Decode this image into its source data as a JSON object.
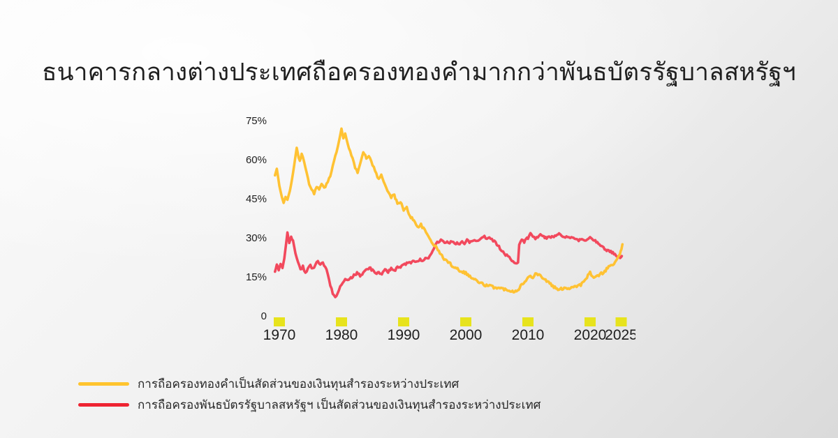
{
  "title": "ธนาคารกลางต่างประเทศถือครองทองคำมากกว่าพันธบัตรรัฐบาลสหรัฐฯ",
  "colors": {
    "background_start": "#fbfbfb",
    "background_mid": "#efefef",
    "background_end": "#dadada",
    "title_text": "#202020",
    "axis_text": "#1e1e1e",
    "tick_marker": "#e7e31d"
  },
  "chart_data": {
    "type": "line",
    "title": "ธนาคารกลางต่างประเทศถือครองทองคำมากกว่าพันธบัตรรัฐบาลสหรัฐฯ",
    "grid": false,
    "legend_position": "bottom-left",
    "x_axis": {
      "range": [
        1969.3,
        2025.3
      ],
      "ticks": [
        {
          "year": 1970,
          "label": "1970"
        },
        {
          "year": 1980,
          "label": "1980"
        },
        {
          "year": 1990,
          "label": "1990"
        },
        {
          "year": 2000,
          "label": "2000"
        },
        {
          "year": 2010,
          "label": "2010"
        },
        {
          "year": 2020,
          "label": "2020"
        },
        {
          "year": 2025,
          "label": "2025"
        }
      ]
    },
    "y_axis": {
      "range": [
        0,
        78
      ],
      "unit": "%",
      "ticks": [
        {
          "value": 0,
          "label": "0"
        },
        {
          "value": 15,
          "label": "15%"
        },
        {
          "value": 30,
          "label": "30%"
        },
        {
          "value": 45,
          "label": "45%"
        },
        {
          "value": 60,
          "label": "60%"
        },
        {
          "value": 75,
          "label": "75%"
        }
      ]
    },
    "series": [
      {
        "name": "gold-share-of-reserves",
        "legend": "การถือครองทองคำเป็นสัดส่วนของเงินทุนสำรองระหว่างประเทศ",
        "color": "#FFC233",
        "legend_color": "#FFC42E",
        "points": [
          [
            1969.3,
            54
          ],
          [
            1969.6,
            56.5
          ],
          [
            1970,
            50
          ],
          [
            1970.4,
            45.5
          ],
          [
            1970.7,
            43.5
          ],
          [
            1971,
            46
          ],
          [
            1971.3,
            44.5
          ],
          [
            1971.7,
            48
          ],
          [
            1972,
            52
          ],
          [
            1972.4,
            58
          ],
          [
            1972.8,
            64.5
          ],
          [
            1973.1,
            61
          ],
          [
            1973.3,
            59.5
          ],
          [
            1973.6,
            62
          ],
          [
            1974,
            59
          ],
          [
            1974.4,
            55
          ],
          [
            1974.8,
            51
          ],
          [
            1975.2,
            48.5
          ],
          [
            1975.6,
            47
          ],
          [
            1976,
            50
          ],
          [
            1976.4,
            48.5
          ],
          [
            1976.8,
            50.5
          ],
          [
            1977.2,
            49
          ],
          [
            1977.6,
            50.5
          ],
          [
            1978,
            52.5
          ],
          [
            1978.4,
            55.5
          ],
          [
            1978.8,
            60
          ],
          [
            1979.2,
            63
          ],
          [
            1979.6,
            67
          ],
          [
            1980,
            72
          ],
          [
            1980.3,
            68
          ],
          [
            1980.6,
            70
          ],
          [
            1981,
            66
          ],
          [
            1981.4,
            63.5
          ],
          [
            1981.8,
            60.5
          ],
          [
            1982.2,
            57
          ],
          [
            1982.6,
            55
          ],
          [
            1983,
            58.5
          ],
          [
            1983.5,
            63
          ],
          [
            1984,
            60.5
          ],
          [
            1984.4,
            61.5
          ],
          [
            1984.8,
            59.5
          ],
          [
            1985.2,
            57
          ],
          [
            1985.6,
            54.5
          ],
          [
            1986,
            52.5
          ],
          [
            1986.4,
            54
          ],
          [
            1986.8,
            51.5
          ],
          [
            1987.2,
            49.5
          ],
          [
            1987.6,
            47.5
          ],
          [
            1988,
            45.5
          ],
          [
            1988.5,
            46.5
          ],
          [
            1989,
            43
          ],
          [
            1989.5,
            44
          ],
          [
            1990,
            40.5
          ],
          [
            1990.5,
            41.5
          ],
          [
            1991,
            38.5
          ],
          [
            1991.5,
            37
          ],
          [
            1992,
            35.5
          ],
          [
            1992.4,
            34
          ],
          [
            1992.8,
            35
          ],
          [
            1993.2,
            33.5
          ],
          [
            1993.6,
            32
          ],
          [
            1994,
            30.5
          ],
          [
            1994.5,
            28.5
          ],
          [
            1995,
            27
          ],
          [
            1995.5,
            25.5
          ],
          [
            1996,
            23.5
          ],
          [
            1996.5,
            22
          ],
          [
            1997,
            21
          ],
          [
            1997.5,
            20
          ],
          [
            1998,
            19
          ],
          [
            1998.5,
            18.5
          ],
          [
            1999,
            17.5
          ],
          [
            1999.5,
            17
          ],
          [
            2000,
            16.5
          ],
          [
            2000.5,
            15.5
          ],
          [
            2001,
            14.5
          ],
          [
            2001.5,
            14
          ],
          [
            2002,
            13
          ],
          [
            2002.5,
            12.5
          ],
          [
            2003,
            12
          ],
          [
            2003.5,
            11.5
          ],
          [
            2004,
            11.5
          ],
          [
            2004.5,
            11
          ],
          [
            2005,
            11
          ],
          [
            2005.5,
            10.5
          ],
          [
            2006,
            10.5
          ],
          [
            2006.5,
            10
          ],
          [
            2007,
            10
          ],
          [
            2007.5,
            9.5
          ],
          [
            2008,
            9.5
          ],
          [
            2008.5,
            10.5
          ],
          [
            2009,
            12
          ],
          [
            2009.5,
            13
          ],
          [
            2010,
            14.5
          ],
          [
            2010.4,
            15.5
          ],
          [
            2010.8,
            15
          ],
          [
            2011.2,
            16.5
          ],
          [
            2011.6,
            16
          ],
          [
            2012,
            15.5
          ],
          [
            2012.5,
            14.5
          ],
          [
            2013,
            13.5
          ],
          [
            2013.5,
            12.5
          ],
          [
            2014,
            11.5
          ],
          [
            2014.5,
            10.5
          ],
          [
            2015,
            10
          ],
          [
            2015.5,
            10.5
          ],
          [
            2016,
            11
          ],
          [
            2016.5,
            10.5
          ],
          [
            2017,
            11
          ],
          [
            2017.5,
            11.5
          ],
          [
            2018,
            11.5
          ],
          [
            2018.5,
            12
          ],
          [
            2019,
            13
          ],
          [
            2019.5,
            15
          ],
          [
            2020,
            16.5
          ],
          [
            2020.4,
            15
          ],
          [
            2020.8,
            14.5
          ],
          [
            2021.2,
            15.5
          ],
          [
            2021.6,
            16
          ],
          [
            2022,
            16.5
          ],
          [
            2022.5,
            17.5
          ],
          [
            2023,
            19
          ],
          [
            2023.5,
            19.5
          ],
          [
            2024,
            20.5
          ],
          [
            2024.4,
            22
          ],
          [
            2024.8,
            23.5
          ],
          [
            2025.05,
            25.5
          ],
          [
            2025.2,
            27.5
          ]
        ]
      },
      {
        "name": "us-treasury-share-of-reserves",
        "legend": "การถือครองพันธบัตรรัฐบาลสหรัฐฯ เป็นสัดส่วนของเงินทุนสำรองระหว่างประเทศ",
        "color": "#F2495D",
        "legend_color": "#EE2432",
        "points": [
          [
            1969.3,
            17
          ],
          [
            1969.6,
            19.5
          ],
          [
            1969.9,
            17.5
          ],
          [
            1970.2,
            20
          ],
          [
            1970.5,
            18.5
          ],
          [
            1970.8,
            22
          ],
          [
            1971.1,
            28
          ],
          [
            1971.3,
            32
          ],
          [
            1971.6,
            28
          ],
          [
            1971.9,
            30.5
          ],
          [
            1972.2,
            29
          ],
          [
            1972.6,
            24
          ],
          [
            1973,
            20.5
          ],
          [
            1973.4,
            18
          ],
          [
            1973.8,
            19
          ],
          [
            1974.2,
            16.5
          ],
          [
            1974.6,
            18
          ],
          [
            1975,
            19.5
          ],
          [
            1975.4,
            18
          ],
          [
            1975.8,
            20
          ],
          [
            1976.2,
            21.5
          ],
          [
            1976.6,
            19.5
          ],
          [
            1977,
            20.5
          ],
          [
            1977.4,
            19
          ],
          [
            1977.8,
            16
          ],
          [
            1978.2,
            12
          ],
          [
            1978.6,
            9
          ],
          [
            1979,
            7.5
          ],
          [
            1979.4,
            8.5
          ],
          [
            1979.8,
            11
          ],
          [
            1980.2,
            12.5
          ],
          [
            1980.6,
            14
          ],
          [
            1981,
            13.5
          ],
          [
            1981.5,
            14.5
          ],
          [
            1982,
            15.5
          ],
          [
            1982.5,
            16.5
          ],
          [
            1983,
            15.5
          ],
          [
            1983.5,
            16.5
          ],
          [
            1984,
            17.5
          ],
          [
            1984.5,
            18.5
          ],
          [
            1985,
            17.5
          ],
          [
            1985.5,
            16.5
          ],
          [
            1986,
            17
          ],
          [
            1986.5,
            16
          ],
          [
            1987,
            17.5
          ],
          [
            1987.5,
            17
          ],
          [
            1988,
            18
          ],
          [
            1988.5,
            17.5
          ],
          [
            1989,
            18.5
          ],
          [
            1989.5,
            19
          ],
          [
            1990,
            19.5
          ],
          [
            1990.5,
            20
          ],
          [
            1991,
            20.5
          ],
          [
            1991.5,
            21
          ],
          [
            1992,
            21
          ],
          [
            1992.5,
            21.5
          ],
          [
            1993,
            21.5
          ],
          [
            1993.5,
            22
          ],
          [
            1994,
            22.5
          ],
          [
            1994.5,
            24.5
          ],
          [
            1995,
            27
          ],
          [
            1995.4,
            28
          ],
          [
            1995.8,
            28.5
          ],
          [
            1996.2,
            29.5
          ],
          [
            1996.6,
            28
          ],
          [
            1997,
            29
          ],
          [
            1997.4,
            28
          ],
          [
            1997.8,
            28.5
          ],
          [
            1998.2,
            27.5
          ],
          [
            1998.6,
            28
          ],
          [
            1999,
            27.5
          ],
          [
            1999.4,
            28.5
          ],
          [
            1999.8,
            28
          ],
          [
            2000.2,
            29
          ],
          [
            2000.6,
            28
          ],
          [
            2001,
            28.5
          ],
          [
            2001.4,
            29.5
          ],
          [
            2001.8,
            29
          ],
          [
            2002.2,
            29.5
          ],
          [
            2002.6,
            30
          ],
          [
            2003,
            30.5
          ],
          [
            2003.4,
            30
          ],
          [
            2003.8,
            30.5
          ],
          [
            2004.2,
            29.5
          ],
          [
            2004.6,
            28.5
          ],
          [
            2005,
            27.5
          ],
          [
            2005.5,
            26
          ],
          [
            2006,
            24.5
          ],
          [
            2006.4,
            23.5
          ],
          [
            2006.8,
            23
          ],
          [
            2007.2,
            21.5
          ],
          [
            2007.6,
            20.5
          ],
          [
            2008,
            20
          ],
          [
            2008.4,
            20.5
          ],
          [
            2008.6,
            27.5
          ],
          [
            2009,
            29.5
          ],
          [
            2009.4,
            28.5
          ],
          [
            2010,
            30
          ],
          [
            2010.4,
            31.5
          ],
          [
            2010.8,
            30.5
          ],
          [
            2011.2,
            30
          ],
          [
            2011.6,
            30.5
          ],
          [
            2012,
            31
          ],
          [
            2012.4,
            30.5
          ],
          [
            2013,
            30
          ],
          [
            2013.4,
            30.5
          ],
          [
            2014,
            30.5
          ],
          [
            2014.5,
            31
          ],
          [
            2015,
            31.5
          ],
          [
            2015.4,
            30.5
          ],
          [
            2015.8,
            30
          ],
          [
            2016.2,
            30.5
          ],
          [
            2016.6,
            30
          ],
          [
            2017,
            30.5
          ],
          [
            2017.5,
            30
          ],
          [
            2018,
            29
          ],
          [
            2018.5,
            29.5
          ],
          [
            2019,
            29
          ],
          [
            2019.5,
            29.5
          ],
          [
            2020,
            30
          ],
          [
            2020.5,
            29.5
          ],
          [
            2021,
            28.5
          ],
          [
            2021.5,
            27.5
          ],
          [
            2022,
            26.5
          ],
          [
            2022.5,
            25.5
          ],
          [
            2023,
            25
          ],
          [
            2023.5,
            24.5
          ],
          [
            2024,
            23.5
          ],
          [
            2024.5,
            23
          ],
          [
            2025,
            22.5
          ],
          [
            2025.1,
            23
          ]
        ]
      }
    ]
  }
}
